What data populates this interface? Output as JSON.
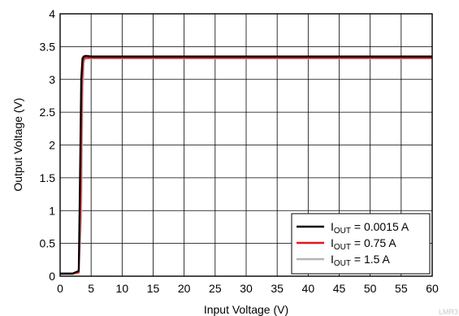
{
  "chart_data": {
    "type": "line",
    "xlabel": "Input Voltage (V)",
    "ylabel": "Output Voltage (V)",
    "xlim": [
      0,
      60
    ],
    "ylim": [
      0,
      4
    ],
    "x_ticks": [
      0,
      5,
      10,
      15,
      20,
      25,
      30,
      35,
      40,
      45,
      50,
      55,
      60
    ],
    "y_ticks": [
      0,
      0.5,
      1,
      1.5,
      2,
      2.5,
      3,
      3.5,
      4
    ],
    "x_tick_labels": [
      "0",
      "5",
      "10",
      "15",
      "20",
      "25",
      "30",
      "35",
      "40",
      "45",
      "50",
      "55",
      "60"
    ],
    "y_tick_labels": [
      "0",
      "0.5",
      "1",
      "1.5",
      "2",
      "2.5",
      "3",
      "3.5",
      "4"
    ],
    "grid": true,
    "legend_position": "bottom-right",
    "series": [
      {
        "name": "IOUT = 0.0015 A",
        "label_main": "I",
        "label_sub": "OUT",
        "label_rest": " = 0.0015 A",
        "color": "#000000",
        "x": [
          0,
          1,
          2,
          3,
          3.2,
          3.4,
          3.6,
          3.8,
          4.2,
          5,
          10,
          60
        ],
        "y": [
          0.04,
          0.04,
          0.04,
          0.08,
          1.5,
          3.0,
          3.32,
          3.35,
          3.36,
          3.35,
          3.35,
          3.35
        ]
      },
      {
        "name": "IOUT = 0.75 A",
        "label_main": "I",
        "label_sub": "OUT",
        "label_rest": " = 0.75 A",
        "color": "#e8141c",
        "x": [
          0,
          1,
          2,
          3,
          3.3,
          3.5,
          3.7,
          3.9,
          4.3,
          5,
          10,
          60
        ],
        "y": [
          0.04,
          0.04,
          0.04,
          0.06,
          1.2,
          2.9,
          3.28,
          3.33,
          3.33,
          3.33,
          3.33,
          3.33
        ]
      },
      {
        "name": "IOUT = 1.5 A",
        "label_main": "I",
        "label_sub": "OUT",
        "label_rest": " = 1.5 A",
        "color": "#b4b4b4",
        "x": [
          0,
          1,
          2,
          3,
          3.4,
          3.6,
          3.8,
          4.0,
          4.5,
          5,
          10,
          60
        ],
        "y": [
          0.03,
          0.03,
          0.03,
          0.05,
          0.9,
          2.7,
          3.25,
          3.31,
          3.32,
          3.32,
          3.32,
          3.32
        ]
      }
    ]
  },
  "watermark": "LMR3"
}
